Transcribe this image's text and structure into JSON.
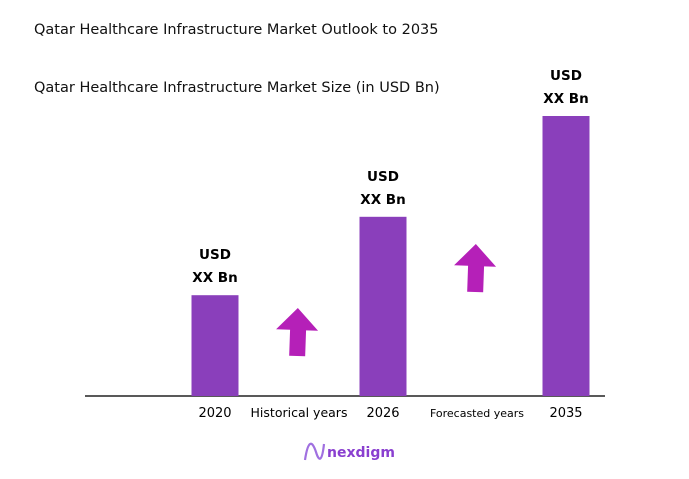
{
  "title": "Qatar Healthcare Infrastructure Market Outlook to 2035",
  "subtitle": "Qatar Healthcare Infrastructure Market Size (in USD Bn)",
  "logo": {
    "text": "nexdigm"
  },
  "colors": {
    "bar": "#8a3fbb",
    "arrow": "#b520b8",
    "logo": "#8a3fd0"
  },
  "chart_data": {
    "type": "bar",
    "title": "Qatar Healthcare Infrastructure Market Size (in USD Bn)",
    "categories": [
      "2020",
      "2026",
      "2035"
    ],
    "relative_values": [
      0.36,
      0.64,
      1.0
    ],
    "data_labels": [
      [
        "USD",
        "XX Bn"
      ],
      [
        "USD",
        "XX Bn"
      ],
      [
        "USD",
        "XX Bn"
      ]
    ],
    "period_labels": [
      "Historical years",
      "Forecasted years"
    ],
    "grid": false,
    "arrows": "up"
  }
}
